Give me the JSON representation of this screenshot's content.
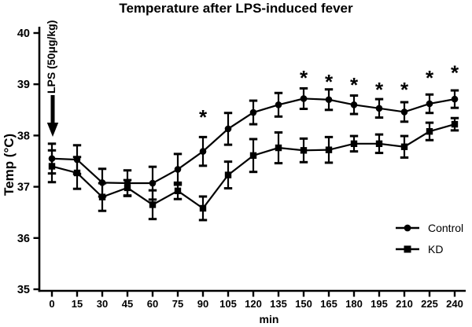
{
  "chart_data": {
    "type": "line",
    "title": "Temperature after LPS-induced fever",
    "xlabel": "min",
    "ylabel": "Temp (°C)",
    "annotation_label": "LPS (50μg/kg)",
    "x": [
      0,
      15,
      30,
      45,
      60,
      75,
      90,
      105,
      120,
      135,
      150,
      165,
      180,
      195,
      210,
      225,
      240
    ],
    "x_ticks": [
      0,
      15,
      30,
      45,
      60,
      75,
      90,
      105,
      120,
      135,
      150,
      165,
      180,
      195,
      210,
      225,
      240
    ],
    "y_ticks": [
      35,
      36,
      37,
      38,
      39,
      40
    ],
    "ylim": [
      35,
      40
    ],
    "grid": false,
    "legend_position": "lower-right",
    "series": [
      {
        "name": "Control",
        "marker": "circle",
        "color": "#000000",
        "values": [
          37.55,
          37.53,
          37.08,
          37.07,
          37.07,
          37.34,
          37.69,
          38.13,
          38.45,
          38.6,
          38.72,
          38.7,
          38.6,
          38.53,
          38.46,
          38.62,
          38.71
        ],
        "errors": [
          0.29,
          0.28,
          0.27,
          0.25,
          0.32,
          0.3,
          0.28,
          0.31,
          0.23,
          0.23,
          0.2,
          0.2,
          0.18,
          0.18,
          0.19,
          0.18,
          0.17
        ]
      },
      {
        "name": "KD",
        "marker": "square",
        "color": "#000000",
        "values": [
          37.4,
          37.27,
          36.8,
          36.98,
          36.65,
          36.92,
          36.58,
          37.23,
          37.61,
          37.76,
          37.71,
          37.72,
          37.84,
          37.84,
          37.78,
          38.08,
          38.22
        ],
        "errors": [
          0.31,
          0.31,
          0.27,
          0.15,
          0.28,
          0.16,
          0.23,
          0.26,
          0.32,
          0.3,
          0.23,
          0.25,
          0.15,
          0.18,
          0.21,
          0.17,
          0.12
        ]
      }
    ],
    "significance_asterisks": [
      {
        "t": 90,
        "v": 38.42
      },
      {
        "t": 150,
        "v": 39.19
      },
      {
        "t": 165,
        "v": 39.11
      },
      {
        "t": 180,
        "v": 39.05
      },
      {
        "t": 195,
        "v": 38.96
      },
      {
        "t": 210,
        "v": 38.96
      },
      {
        "t": 225,
        "v": 39.19
      },
      {
        "t": 240,
        "v": 39.29
      }
    ],
    "axis_color": "#000000",
    "background": "#ffffff"
  }
}
